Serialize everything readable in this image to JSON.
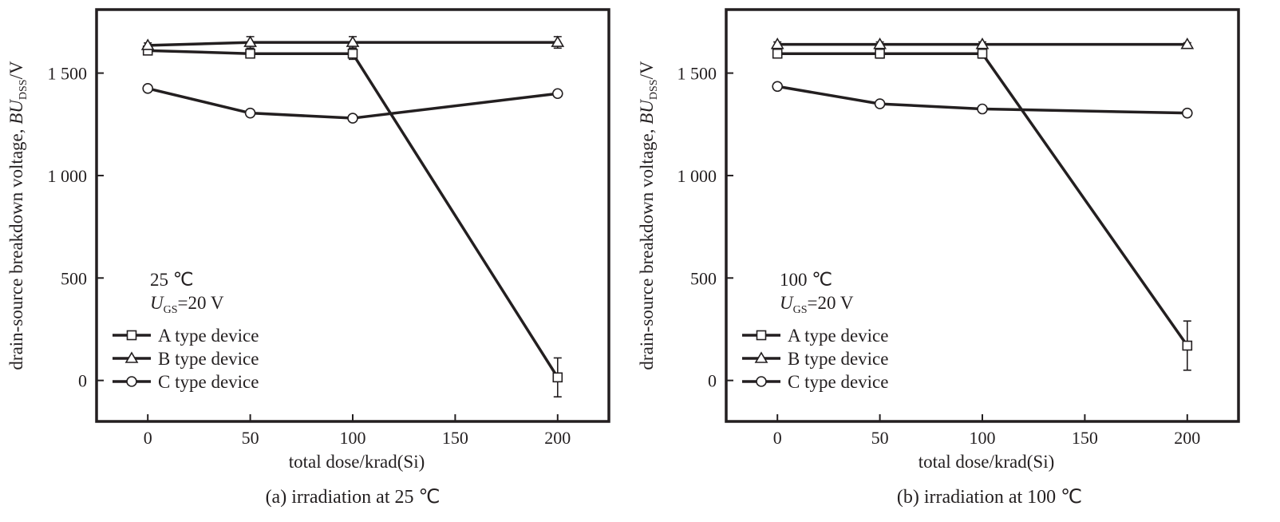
{
  "chart_data": [
    {
      "type": "line",
      "caption": "(a) irradiation at 25 ℃",
      "xlabel": "total dose/krad(Si)",
      "ylabel_main": "drain-source breakdown voltage, ",
      "ylabel_symbol": "BU",
      "ylabel_sub": "DSS",
      "ylabel_unit": "/V",
      "xlim": [
        -25,
        225
      ],
      "ylim": [
        -200,
        1810
      ],
      "xticks": [
        0,
        50,
        100,
        150,
        200
      ],
      "xtick_labels": [
        "0",
        "50",
        "100",
        "150",
        "200"
      ],
      "yticks": [
        0,
        500,
        1000,
        1500
      ],
      "ytick_labels": [
        "0",
        "500",
        "1 000",
        "1 500"
      ],
      "annotation": {
        "temperature": "25 ℃",
        "voltage_symbol": "U",
        "voltage_sub": "GS",
        "voltage_value": "=20 V"
      },
      "x": [
        0,
        50,
        100,
        200
      ],
      "series": [
        {
          "name": "A type device",
          "marker": "square",
          "values": [
            1610,
            1595,
            1595,
            15
          ],
          "errors": [
            12,
            18,
            28,
            95
          ]
        },
        {
          "name": "B type device",
          "marker": "triangle",
          "values": [
            1635,
            1650,
            1650,
            1650
          ],
          "errors": [
            12,
            28,
            28,
            28
          ]
        },
        {
          "name": "C type device",
          "marker": "circle",
          "values": [
            1425,
            1305,
            1280,
            1400
          ],
          "errors": [
            10,
            15,
            10,
            8
          ]
        }
      ]
    },
    {
      "type": "line",
      "caption": "(b) irradiation at 100 ℃",
      "xlabel": "total dose/krad(Si)",
      "ylabel_main": "drain-source breakdown voltage, ",
      "ylabel_symbol": "BU",
      "ylabel_sub": "DSS",
      "ylabel_unit": "/V",
      "xlim": [
        -25,
        225
      ],
      "ylim": [
        -200,
        1810
      ],
      "xticks": [
        0,
        50,
        100,
        150,
        200
      ],
      "xtick_labels": [
        "0",
        "50",
        "100",
        "150",
        "200"
      ],
      "yticks": [
        0,
        500,
        1000,
        1500
      ],
      "ytick_labels": [
        "0",
        "500",
        "1 000",
        "1 500"
      ],
      "annotation": {
        "temperature": "100 ℃",
        "voltage_symbol": "U",
        "voltage_sub": "GS",
        "voltage_value": "=20 V"
      },
      "x": [
        0,
        50,
        100,
        200
      ],
      "series": [
        {
          "name": "A type device",
          "marker": "square",
          "values": [
            1595,
            1595,
            1595,
            170
          ],
          "errors": [
            20,
            22,
            22,
            120
          ]
        },
        {
          "name": "B type device",
          "marker": "triangle",
          "values": [
            1640,
            1640,
            1640,
            1640
          ],
          "errors": [
            12,
            12,
            12,
            8
          ]
        },
        {
          "name": "C type device",
          "marker": "circle",
          "values": [
            1435,
            1350,
            1325,
            1305
          ],
          "errors": [
            8,
            8,
            8,
            8
          ]
        }
      ]
    }
  ]
}
